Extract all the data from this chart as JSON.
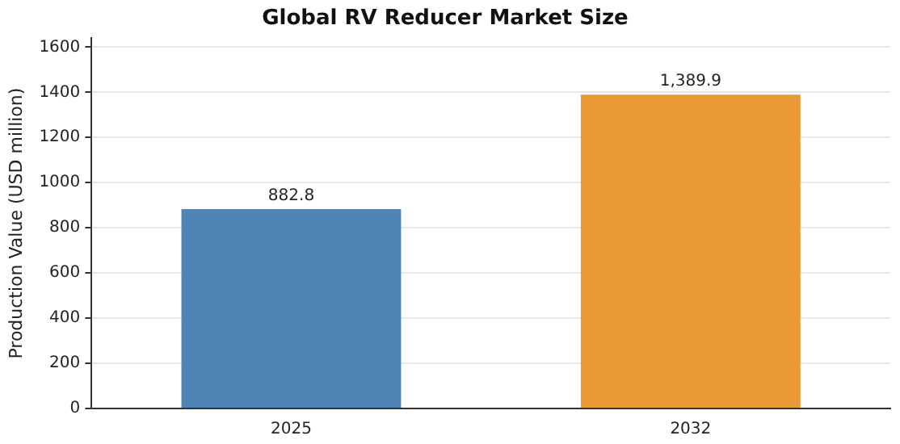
{
  "chart_data": {
    "type": "bar",
    "title": "Global RV Reducer Market Size",
    "ylabel": "Production Value (USD million)",
    "categories": [
      "2025",
      "2032"
    ],
    "values": [
      882.8,
      1389.9
    ],
    "colors": [
      "#4e84b6",
      "#ea9a35"
    ],
    "value_labels": [
      "882.8",
      "1,389.9"
    ],
    "ylim": [
      0,
      1640
    ],
    "yticks": [
      0,
      200,
      400,
      600,
      800,
      1000,
      1200,
      1400,
      1600
    ],
    "grid": "y"
  }
}
